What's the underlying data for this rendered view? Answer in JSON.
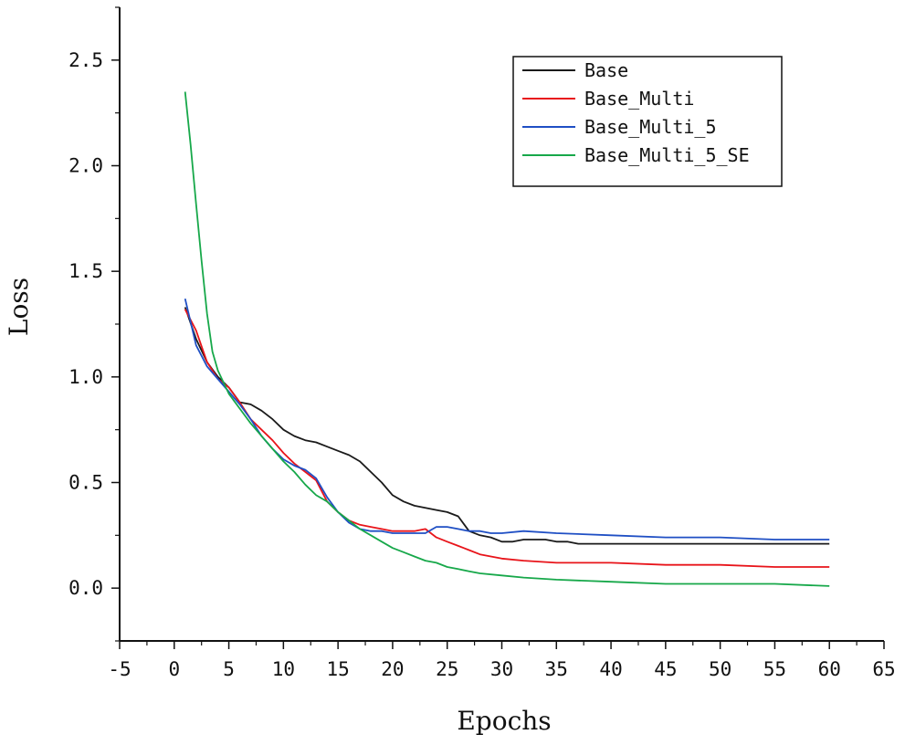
{
  "chart_data": {
    "type": "line",
    "title": "",
    "xlabel": "Epochs",
    "ylabel": "Loss",
    "xlim": [
      -5,
      65
    ],
    "ylim": [
      -0.25,
      2.75
    ],
    "xticks": [
      -5,
      0,
      5,
      10,
      15,
      20,
      25,
      30,
      35,
      40,
      45,
      50,
      55,
      60,
      65
    ],
    "xtick_labels": [
      "-5",
      "0",
      "5",
      "10",
      "15",
      "20",
      "25",
      "30",
      "35",
      "40",
      "45",
      "50",
      "55",
      "60",
      "65"
    ],
    "yticks": [
      0.0,
      0.5,
      1.0,
      1.5,
      2.0,
      2.5
    ],
    "ytick_labels": [
      "0.0",
      "0.5",
      "1.0",
      "1.5",
      "2.0",
      "2.5"
    ],
    "grid": false,
    "legend_position": "top-right",
    "series": [
      {
        "name": "Base",
        "color": "#1a1a1a",
        "x": [
          1,
          2,
          3,
          4,
          5,
          6,
          7,
          8,
          9,
          10,
          11,
          12,
          13,
          14,
          15,
          16,
          17,
          18,
          19,
          20,
          21,
          22,
          23,
          24,
          25,
          26,
          27,
          28,
          29,
          30,
          31,
          32,
          33,
          34,
          35,
          36,
          37,
          38,
          40,
          45,
          50,
          55,
          60
        ],
        "y": [
          1.33,
          1.18,
          1.07,
          1.0,
          0.95,
          0.88,
          0.87,
          0.84,
          0.8,
          0.75,
          0.72,
          0.7,
          0.69,
          0.67,
          0.65,
          0.63,
          0.6,
          0.55,
          0.5,
          0.44,
          0.41,
          0.39,
          0.38,
          0.37,
          0.36,
          0.34,
          0.27,
          0.25,
          0.24,
          0.22,
          0.22,
          0.23,
          0.23,
          0.23,
          0.22,
          0.22,
          0.21,
          0.21,
          0.21,
          0.21,
          0.21,
          0.21,
          0.21
        ]
      },
      {
        "name": "Base_Multi",
        "color": "#e8141a",
        "x": [
          1,
          2,
          3,
          4,
          5,
          6,
          7,
          8,
          9,
          10,
          11,
          12,
          13,
          14,
          15,
          16,
          17,
          18,
          19,
          20,
          21,
          22,
          23,
          24,
          25,
          26,
          27,
          28,
          29,
          30,
          32,
          35,
          40,
          45,
          50,
          55,
          60
        ],
        "y": [
          1.32,
          1.22,
          1.07,
          0.99,
          0.95,
          0.88,
          0.8,
          0.75,
          0.7,
          0.64,
          0.59,
          0.55,
          0.51,
          0.41,
          0.36,
          0.32,
          0.3,
          0.29,
          0.28,
          0.27,
          0.27,
          0.27,
          0.28,
          0.24,
          0.22,
          0.2,
          0.18,
          0.16,
          0.15,
          0.14,
          0.13,
          0.12,
          0.12,
          0.11,
          0.11,
          0.1,
          0.1
        ]
      },
      {
        "name": "Base_Multi_5",
        "color": "#1f4fc4",
        "x": [
          1,
          2,
          3,
          4,
          5,
          6,
          7,
          8,
          9,
          10,
          11,
          12,
          13,
          14,
          15,
          16,
          17,
          18,
          19,
          20,
          21,
          22,
          23,
          24,
          25,
          26,
          27,
          28,
          29,
          30,
          32,
          35,
          40,
          45,
          50,
          55,
          60
        ],
        "y": [
          1.37,
          1.15,
          1.05,
          0.99,
          0.93,
          0.87,
          0.8,
          0.72,
          0.66,
          0.61,
          0.58,
          0.56,
          0.52,
          0.43,
          0.36,
          0.31,
          0.28,
          0.27,
          0.27,
          0.26,
          0.26,
          0.26,
          0.26,
          0.29,
          0.29,
          0.28,
          0.27,
          0.27,
          0.26,
          0.26,
          0.27,
          0.26,
          0.25,
          0.24,
          0.24,
          0.23,
          0.23
        ]
      },
      {
        "name": "Base_Multi_5_SE",
        "color": "#17a84a",
        "x": [
          1,
          1.5,
          2,
          2.5,
          3,
          3.5,
          4,
          5,
          6,
          7,
          8,
          9,
          10,
          11,
          12,
          13,
          14,
          15,
          16,
          17,
          18,
          19,
          20,
          21,
          22,
          23,
          24,
          25,
          26,
          27,
          28,
          30,
          32,
          35,
          40,
          45,
          50,
          55,
          60
        ],
        "y": [
          2.35,
          2.1,
          1.82,
          1.55,
          1.3,
          1.12,
          1.03,
          0.92,
          0.85,
          0.78,
          0.72,
          0.66,
          0.6,
          0.55,
          0.49,
          0.44,
          0.41,
          0.36,
          0.32,
          0.28,
          0.25,
          0.22,
          0.19,
          0.17,
          0.15,
          0.13,
          0.12,
          0.1,
          0.09,
          0.08,
          0.07,
          0.06,
          0.05,
          0.04,
          0.03,
          0.02,
          0.02,
          0.02,
          0.01
        ]
      }
    ]
  }
}
